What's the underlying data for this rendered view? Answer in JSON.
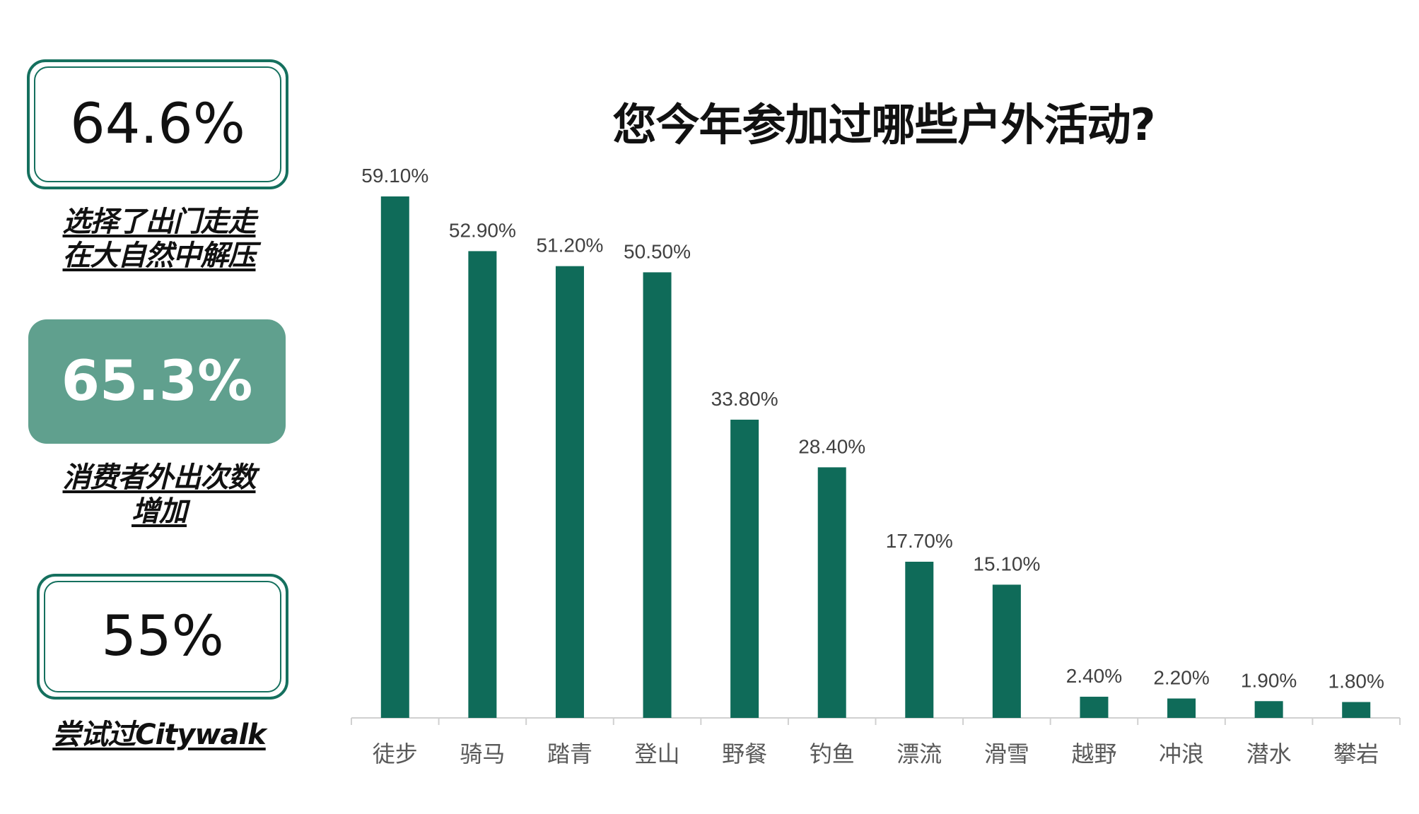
{
  "stats": [
    {
      "value": "64.6%",
      "caption": [
        "选择了出门走走",
        "在大自然中解压"
      ],
      "style": "outlined"
    },
    {
      "value": "65.3%",
      "caption": [
        "消费者外出次数",
        "增加"
      ],
      "style": "filled"
    },
    {
      "value": "55%",
      "caption": [
        "尝试过Citywalk"
      ],
      "style": "outlined"
    }
  ],
  "colors": {
    "bar": "#0f6b59",
    "accent_fill": "#60a08e",
    "outline": "#15705e"
  },
  "chart_data": {
    "type": "bar",
    "title": "您今年参加过哪些户外活动?",
    "categories": [
      "徒步",
      "骑马",
      "踏青",
      "登山",
      "野餐",
      "钓鱼",
      "漂流",
      "滑雪",
      "越野",
      "冲浪",
      "潜水",
      "攀岩"
    ],
    "values": [
      59.1,
      52.9,
      51.2,
      50.5,
      33.8,
      28.4,
      17.7,
      15.1,
      2.4,
      2.2,
      1.9,
      1.8
    ],
    "value_labels": [
      "59.10%",
      "52.90%",
      "51.20%",
      "50.50%",
      "33.80%",
      "28.40%",
      "17.70%",
      "15.10%",
      "2.40%",
      "2.20%",
      "1.90%",
      "1.80%"
    ],
    "ylim": [
      0,
      60
    ],
    "grid": false,
    "legend": "none"
  }
}
